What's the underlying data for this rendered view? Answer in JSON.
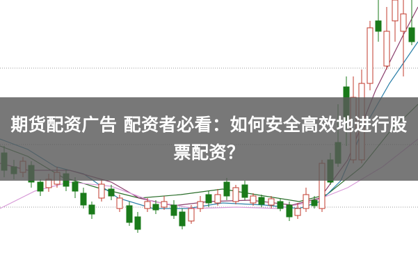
{
  "headline": {
    "line1": "期货配资广告 配资者必看：如何安全高效地进行股",
    "line2": "票配资？"
  },
  "colors": {
    "up_candle": "#c0392b",
    "down_candle": "#1a7a1a",
    "overlay": "#5a5a5a",
    "ma_lines": [
      "#2a6e2a",
      "#2b7fa8",
      "#8a3d6b",
      "#d89ad8"
    ]
  },
  "background_icon": "candlestick-chart"
}
